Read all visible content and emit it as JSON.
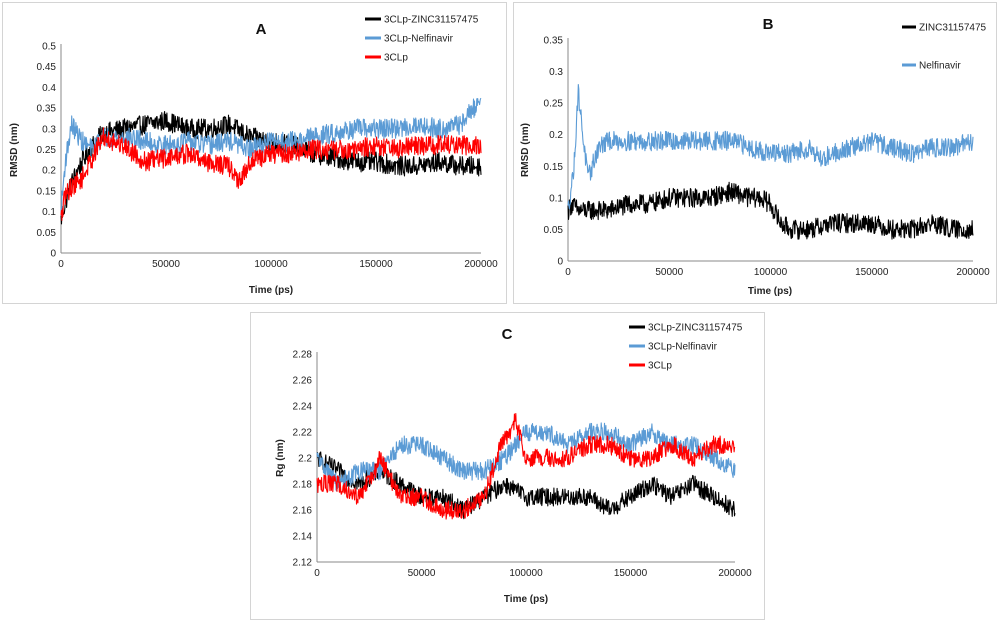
{
  "chart_data": [
    {
      "panel": "A",
      "type": "line",
      "title": "A",
      "xlabel": "Time (ps)",
      "ylabel": "RMSD (nm)",
      "xlim": [
        0,
        200000
      ],
      "ylim": [
        0,
        0.5
      ],
      "xticks": [
        0,
        50000,
        100000,
        150000,
        200000
      ],
      "xtick_labels": [
        "0",
        "50000",
        "100000",
        "150000",
        "200000"
      ],
      "yticks": [
        0,
        0.05,
        0.1,
        0.15,
        0.2,
        0.25,
        0.3,
        0.35,
        0.4,
        0.45,
        0.5
      ],
      "ytick_labels": [
        "0",
        "0.05",
        "0.1",
        "0.15",
        "0.2",
        "0.25",
        "0.3",
        "0.35",
        "0.4",
        "0.45",
        "0.5"
      ],
      "legend_position": "top-right",
      "series": [
        {
          "name": "3CLp-ZINC31157475",
          "color": "#000000",
          "x": [
            0,
            2000,
            5000,
            10000,
            15000,
            20000,
            30000,
            40000,
            50000,
            60000,
            70000,
            80000,
            90000,
            100000,
            110000,
            120000,
            130000,
            140000,
            150000,
            160000,
            170000,
            180000,
            190000,
            200000
          ],
          "y": [
            0.08,
            0.12,
            0.17,
            0.22,
            0.26,
            0.29,
            0.3,
            0.31,
            0.32,
            0.3,
            0.3,
            0.31,
            0.28,
            0.27,
            0.26,
            0.24,
            0.23,
            0.22,
            0.22,
            0.21,
            0.21,
            0.22,
            0.21,
            0.21
          ]
        },
        {
          "name": "3CLp-Nelfinavir",
          "color": "#5b9bd5",
          "x": [
            0,
            2000,
            5000,
            10000,
            15000,
            20000,
            30000,
            40000,
            50000,
            60000,
            70000,
            80000,
            90000,
            100000,
            110000,
            120000,
            130000,
            140000,
            150000,
            160000,
            170000,
            180000,
            190000,
            200000
          ],
          "y": [
            0.1,
            0.22,
            0.31,
            0.27,
            0.25,
            0.28,
            0.28,
            0.27,
            0.26,
            0.27,
            0.26,
            0.27,
            0.25,
            0.27,
            0.27,
            0.28,
            0.29,
            0.3,
            0.3,
            0.3,
            0.31,
            0.3,
            0.31,
            0.37
          ]
        },
        {
          "name": "3CLp",
          "color": "#ff0000",
          "x": [
            0,
            2000,
            5000,
            10000,
            15000,
            20000,
            30000,
            40000,
            50000,
            60000,
            70000,
            80000,
            85000,
            90000,
            100000,
            110000,
            120000,
            130000,
            140000,
            150000,
            160000,
            170000,
            180000,
            190000,
            200000
          ],
          "y": [
            0.08,
            0.14,
            0.16,
            0.18,
            0.23,
            0.28,
            0.26,
            0.22,
            0.23,
            0.24,
            0.22,
            0.21,
            0.17,
            0.22,
            0.24,
            0.24,
            0.25,
            0.25,
            0.25,
            0.26,
            0.25,
            0.26,
            0.26,
            0.26,
            0.26
          ]
        }
      ]
    },
    {
      "panel": "B",
      "type": "line",
      "title": "B",
      "xlabel": "Time (ps)",
      "ylabel": "RMSD (nm)",
      "xlim": [
        0,
        200000
      ],
      "ylim": [
        0,
        0.35
      ],
      "xticks": [
        0,
        50000,
        100000,
        150000,
        200000
      ],
      "xtick_labels": [
        "0",
        "50000",
        "100000",
        "150000",
        "200000"
      ],
      "yticks": [
        0,
        0.05,
        0.1,
        0.15,
        0.2,
        0.25,
        0.3,
        0.35
      ],
      "ytick_labels": [
        "0",
        "0.05",
        "0.1",
        "0.15",
        "0.2",
        "0.25",
        "0.3",
        "0.35"
      ],
      "legend_position": "top-right",
      "series": [
        {
          "name": "ZINC31157475",
          "color": "#000000",
          "x": [
            0,
            2000,
            5000,
            10000,
            20000,
            30000,
            40000,
            50000,
            60000,
            70000,
            80000,
            90000,
            95000,
            100000,
            105000,
            110000,
            120000,
            130000,
            140000,
            150000,
            160000,
            170000,
            180000,
            190000,
            200000
          ],
          "y": [
            0.08,
            0.09,
            0.08,
            0.08,
            0.08,
            0.09,
            0.09,
            0.1,
            0.1,
            0.1,
            0.11,
            0.1,
            0.1,
            0.09,
            0.06,
            0.05,
            0.05,
            0.06,
            0.06,
            0.06,
            0.05,
            0.05,
            0.06,
            0.05,
            0.05
          ]
        },
        {
          "name": "Nelfinavir",
          "color": "#5b9bd5",
          "x": [
            0,
            3000,
            5000,
            8000,
            10000,
            15000,
            20000,
            40000,
            60000,
            80000,
            90000,
            100000,
            110000,
            120000,
            125000,
            130000,
            140000,
            150000,
            160000,
            170000,
            180000,
            190000,
            200000
          ],
          "y": [
            0.08,
            0.15,
            0.27,
            0.18,
            0.13,
            0.18,
            0.19,
            0.19,
            0.19,
            0.19,
            0.18,
            0.17,
            0.17,
            0.18,
            0.16,
            0.17,
            0.18,
            0.19,
            0.18,
            0.17,
            0.18,
            0.18,
            0.19
          ]
        }
      ]
    },
    {
      "panel": "C",
      "type": "line",
      "title": "C",
      "xlabel": "Time (ps)",
      "ylabel": "Rg (nm)",
      "xlim": [
        0,
        200000
      ],
      "ylim": [
        2.12,
        2.28
      ],
      "xticks": [
        0,
        50000,
        100000,
        150000,
        200000
      ],
      "xtick_labels": [
        "0",
        "50000",
        "100000",
        "150000",
        "200000"
      ],
      "yticks": [
        2.12,
        2.14,
        2.16,
        2.18,
        2.2,
        2.22,
        2.24,
        2.26,
        2.28
      ],
      "ytick_labels": [
        "2.12",
        "2.14",
        "2.16",
        "2.18",
        "2.2",
        "2.22",
        "2.24",
        "2.26",
        "2.28"
      ],
      "legend_position": "top-right",
      "series": [
        {
          "name": "3CLp-ZINC31157475",
          "color": "#000000",
          "x": [
            0,
            10000,
            20000,
            30000,
            40000,
            50000,
            60000,
            70000,
            80000,
            90000,
            100000,
            110000,
            120000,
            130000,
            140000,
            150000,
            160000,
            170000,
            180000,
            190000,
            200000
          ],
          "y": [
            2.2,
            2.19,
            2.18,
            2.19,
            2.18,
            2.17,
            2.17,
            2.16,
            2.17,
            2.18,
            2.17,
            2.17,
            2.17,
            2.17,
            2.16,
            2.17,
            2.18,
            2.17,
            2.18,
            2.17,
            2.16
          ]
        },
        {
          "name": "3CLp-Nelfinavir",
          "color": "#5b9bd5",
          "x": [
            0,
            10000,
            20000,
            30000,
            40000,
            50000,
            60000,
            70000,
            80000,
            90000,
            100000,
            110000,
            120000,
            130000,
            140000,
            150000,
            160000,
            170000,
            180000,
            190000,
            200000
          ],
          "y": [
            2.2,
            2.18,
            2.19,
            2.19,
            2.21,
            2.21,
            2.2,
            2.19,
            2.19,
            2.2,
            2.22,
            2.22,
            2.21,
            2.22,
            2.22,
            2.21,
            2.22,
            2.21,
            2.21,
            2.2,
            2.19
          ]
        },
        {
          "name": "3CLp",
          "color": "#ff0000",
          "x": [
            0,
            10000,
            20000,
            28000,
            30000,
            40000,
            50000,
            60000,
            70000,
            80000,
            88000,
            92000,
            95000,
            100000,
            110000,
            120000,
            130000,
            140000,
            150000,
            160000,
            170000,
            180000,
            190000,
            200000
          ],
          "y": [
            2.18,
            2.18,
            2.17,
            2.19,
            2.2,
            2.17,
            2.17,
            2.16,
            2.16,
            2.17,
            2.21,
            2.22,
            2.23,
            2.2,
            2.2,
            2.2,
            2.21,
            2.21,
            2.2,
            2.2,
            2.21,
            2.2,
            2.21,
            2.21
          ]
        }
      ]
    }
  ]
}
